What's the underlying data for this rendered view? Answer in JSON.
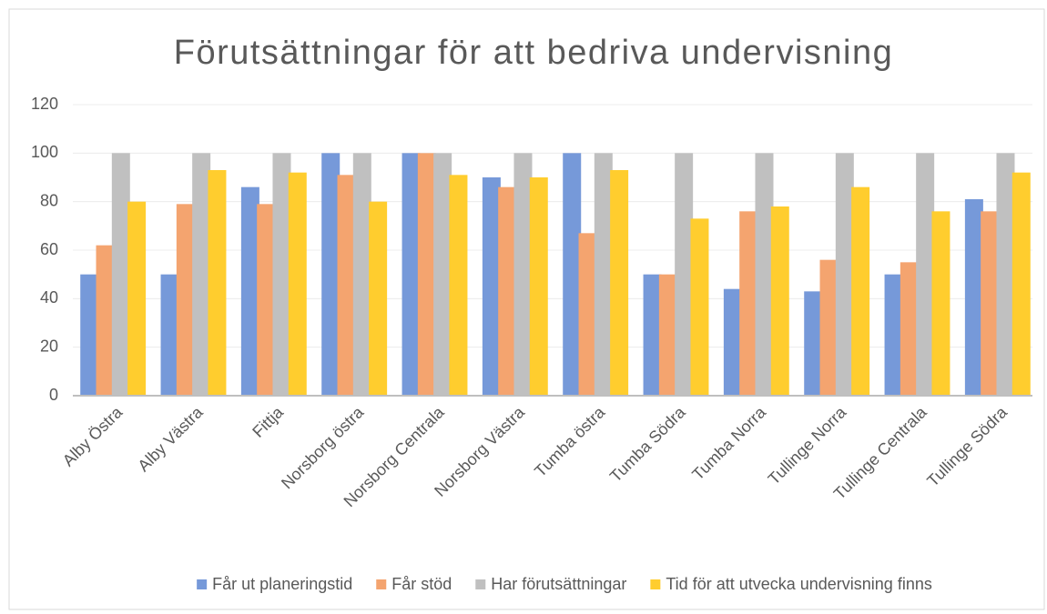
{
  "chart_data": {
    "type": "bar",
    "title": "Förutsättningar för att bedriva undervisning",
    "categories": [
      "Alby Östra",
      "Alby Västra",
      "Fittja",
      "Norsborg östra",
      "Norsborg Centrala",
      "Norsborg Västra",
      "Tumba östra",
      "Tumba Södra",
      "Tumba Norra",
      "Tullinge Norra",
      "Tullinge Centrala",
      "Tullinge Södra"
    ],
    "series": [
      {
        "name": "Får ut planeringstid",
        "color": "#7699d9",
        "values": [
          50,
          50,
          86,
          100,
          100,
          90,
          100,
          50,
          44,
          43,
          50,
          81
        ]
      },
      {
        "name": "Får stöd",
        "color": "#f4a46f",
        "values": [
          62,
          79,
          79,
          91,
          100,
          86,
          67,
          50,
          76,
          56,
          55,
          76
        ]
      },
      {
        "name": "Har förutsättningar",
        "color": "#c0c0c0",
        "values": [
          100,
          100,
          100,
          100,
          100,
          100,
          100,
          100,
          100,
          100,
          100,
          100
        ]
      },
      {
        "name": "Tid för att utvecka undervisning finns",
        "color": "#ffcd2e",
        "values": [
          80,
          93,
          92,
          80,
          91,
          90,
          93,
          73,
          78,
          86,
          76,
          92
        ]
      }
    ],
    "ylim": [
      0,
      120
    ],
    "yticks": [
      0,
      20,
      40,
      60,
      80,
      100,
      120
    ],
    "grid": true,
    "legend": "bottom"
  }
}
